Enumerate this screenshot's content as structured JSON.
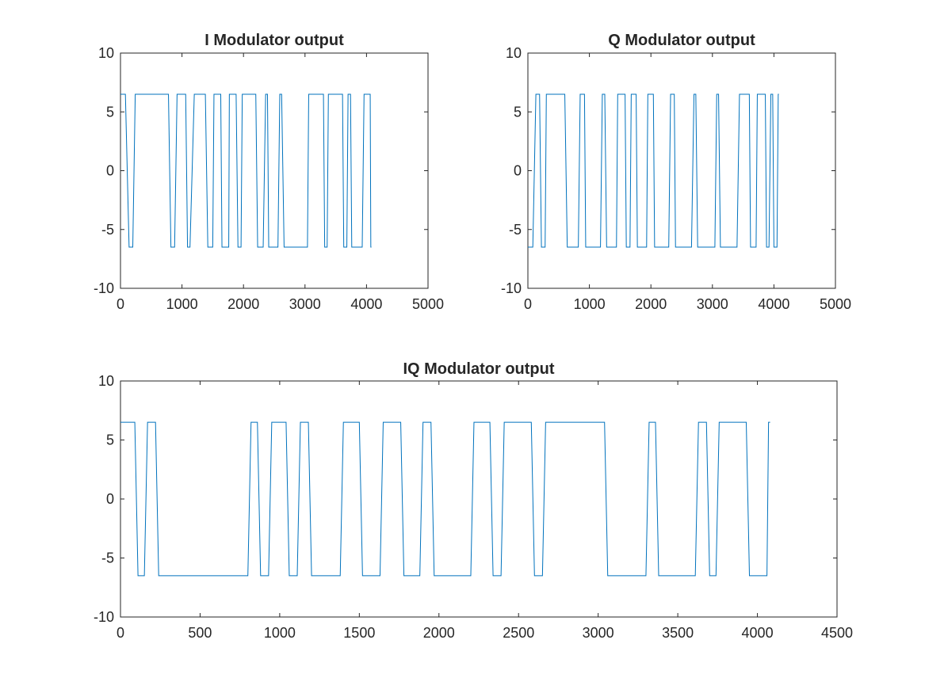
{
  "figure": {
    "background": "#ffffff",
    "line_color": "#0072BD",
    "axes_color": "#262626"
  },
  "chart_data": [
    {
      "id": "i",
      "type": "line",
      "title": "I Modulator output",
      "xlim": [
        0,
        5000
      ],
      "ylim": [
        -10,
        10
      ],
      "xticks": [
        0,
        1000,
        2000,
        3000,
        4000,
        5000
      ],
      "yticks": [
        -10,
        -5,
        0,
        5,
        10
      ],
      "xticklabels": [
        "0",
        "1000",
        "2000",
        "3000",
        "4000",
        "5000"
      ],
      "yticklabels": [
        "-10",
        "-5",
        "0",
        "5",
        "10"
      ],
      "amplitude": 6.5,
      "x_end": 4080,
      "transitions": [
        0,
        80,
        140,
        200,
        240,
        780,
        820,
        880,
        920,
        1060,
        1090,
        1130,
        1200,
        1380,
        1420,
        1500,
        1520,
        1630,
        1650,
        1760,
        1770,
        1880,
        1910,
        1960,
        1980,
        2200,
        2230,
        2320,
        2360,
        2390,
        2410,
        2560,
        2590,
        2620,
        2660,
        3040,
        3060,
        3300,
        3320,
        3360,
        3380,
        3610,
        3630,
        3680,
        3700,
        3740,
        3760,
        3930,
        3960,
        4060,
        4070
      ],
      "start_level": 1,
      "series": [
        {
          "values_note": ""
        }
      ]
    },
    {
      "id": "q",
      "type": "line",
      "title": "Q Modulator output",
      "xlim": [
        0,
        5000
      ],
      "ylim": [
        -10,
        10
      ],
      "xticks": [
        0,
        1000,
        2000,
        3000,
        4000,
        5000
      ],
      "yticks": [
        -10,
        -5,
        0,
        5,
        10
      ],
      "xticklabels": [
        "0",
        "1000",
        "2000",
        "3000",
        "4000",
        "5000"
      ],
      "yticklabels": [
        "-10",
        "-5",
        "0",
        "5",
        "10"
      ],
      "amplitude": 6.5,
      "x_end": 4080,
      "transitions": [
        0,
        80,
        130,
        190,
        220,
        280,
        300,
        600,
        640,
        820,
        850,
        920,
        940,
        1180,
        1210,
        1250,
        1280,
        1440,
        1460,
        1580,
        1600,
        1660,
        1680,
        1760,
        1780,
        1930,
        1950,
        2040,
        2060,
        2290,
        2320,
        2380,
        2400,
        2660,
        2700,
        2730,
        2760,
        3040,
        3070,
        3100,
        3130,
        3400,
        3440,
        3600,
        3620,
        3710,
        3730,
        3860,
        3880,
        3920,
        3950,
        3980,
        4000,
        4050,
        4070
      ],
      "start_level": -1,
      "series": [
        {
          "values_note": ""
        }
      ]
    },
    {
      "id": "iq",
      "type": "line",
      "title": "IQ Modulator output",
      "xlim": [
        0,
        4500
      ],
      "ylim": [
        -10,
        10
      ],
      "xticks": [
        0,
        500,
        1000,
        1500,
        2000,
        2500,
        3000,
        3500,
        4000,
        4500
      ],
      "yticks": [
        -10,
        -5,
        0,
        5,
        10
      ],
      "xticklabels": [
        "0",
        "500",
        "1000",
        "1500",
        "2000",
        "2500",
        "3000",
        "3500",
        "4000",
        "4500"
      ],
      "yticklabels": [
        "-10",
        "-5",
        "0",
        "5",
        "10"
      ],
      "amplitude": 6.5,
      "x_end": 4080,
      "transitions": [
        0,
        90,
        110,
        150,
        170,
        220,
        240,
        800,
        820,
        860,
        880,
        930,
        950,
        1040,
        1060,
        1110,
        1130,
        1180,
        1200,
        1380,
        1400,
        1500,
        1520,
        1630,
        1650,
        1760,
        1780,
        1880,
        1900,
        1950,
        1970,
        2200,
        2220,
        2320,
        2340,
        2390,
        2410,
        2580,
        2600,
        2650,
        2670,
        3040,
        3060,
        3300,
        3320,
        3360,
        3380,
        3610,
        3630,
        3680,
        3700,
        3740,
        3760,
        3930,
        3950,
        4060,
        4070
      ],
      "start_level": 1,
      "series": [
        {
          "values_note": ""
        }
      ]
    }
  ]
}
